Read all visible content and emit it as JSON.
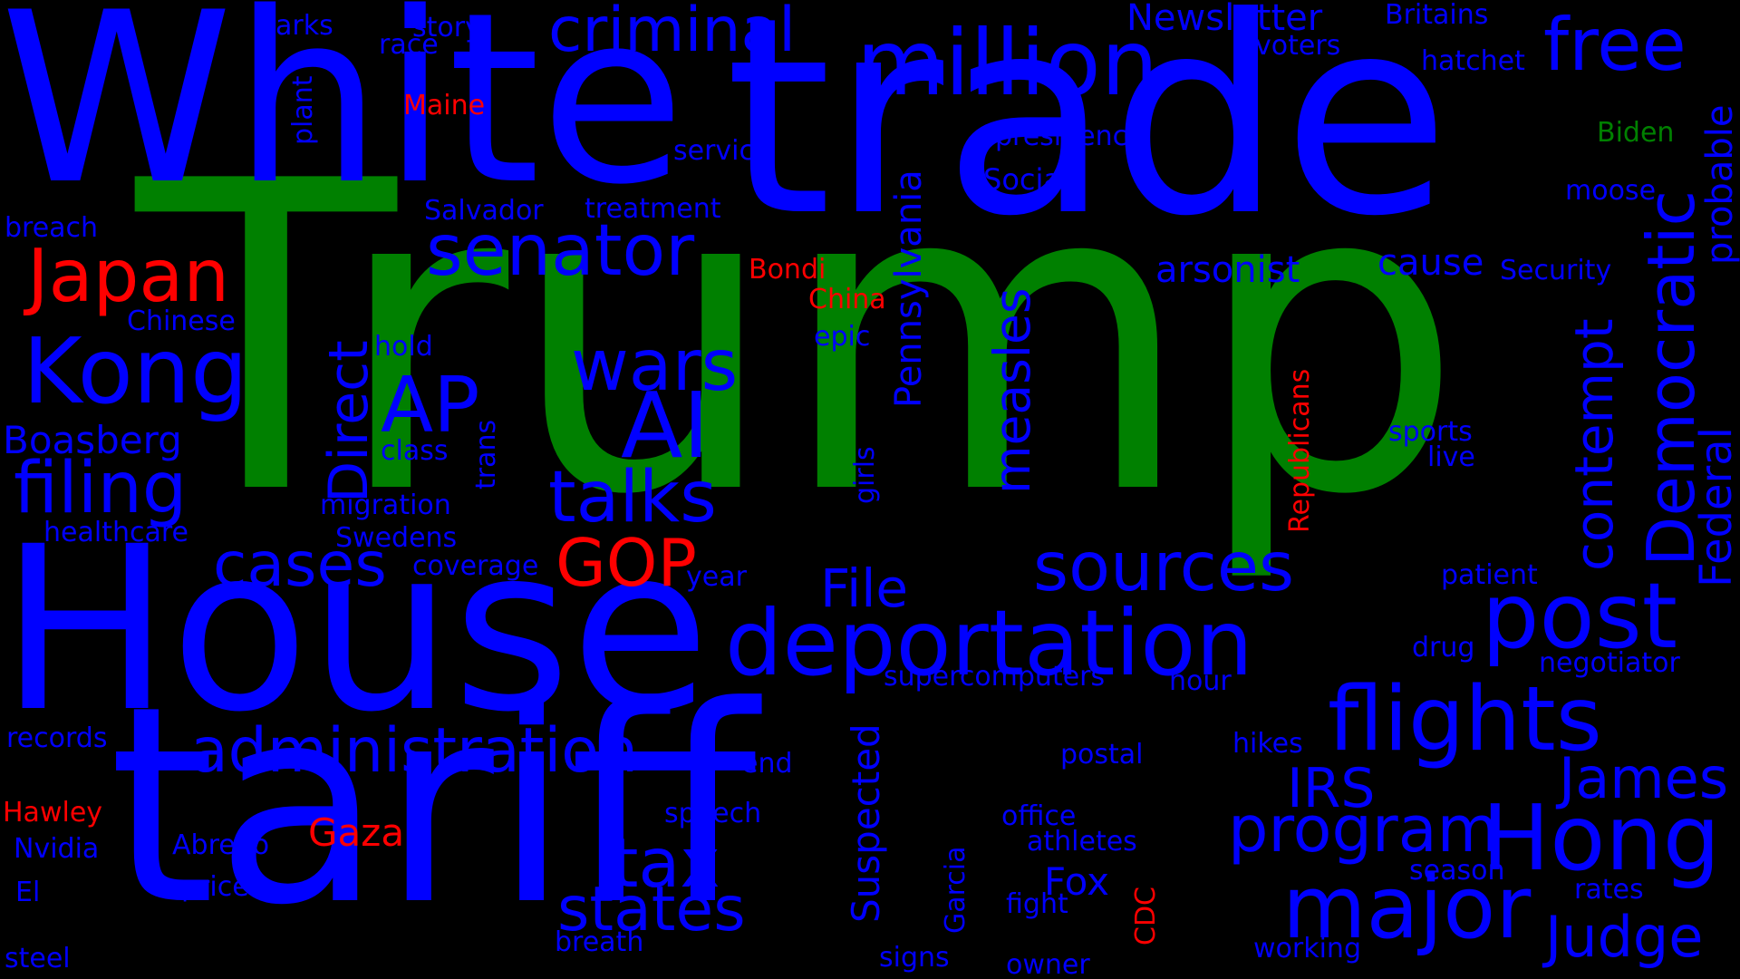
{
  "word_cloud": {
    "colors": {
      "background": "#000000",
      "blue": "#0000ff",
      "green": "#008000",
      "red": "#ff0000"
    },
    "words": {
      "trump": "Trump",
      "white": "White",
      "trade": "trade",
      "house": "House",
      "tariff": "tariff",
      "million": "million",
      "criminal": "criminal",
      "newsletter": "Newsletter",
      "britains": "Britains",
      "free": "free",
      "voters": "voters",
      "hatchet": "hatchet",
      "parks": "parks",
      "story": "story",
      "race": "race",
      "maine": "Maine",
      "plant": "plant",
      "service": "service",
      "presidency": "presidency",
      "biden": "Biden",
      "social": "Social",
      "pennsylvania": "Pennsylvania",
      "democratic": "Democratic",
      "probable": "probable",
      "moose": "moose",
      "salvador": "Salvador",
      "treatment": "treatment",
      "breach": "breach",
      "japan": "Japan",
      "senator": "senator",
      "bondi": "Bondi",
      "arsonist": "arsonist",
      "cause": "cause",
      "security": "Security",
      "china": "China",
      "chinese": "Chinese",
      "epic": "epic",
      "measles": "measles",
      "contempt": "contempt",
      "federal": "Federal",
      "kong": "Kong",
      "direct": "Direct",
      "hold": "hold",
      "wars": "wars",
      "ap": "AP",
      "ai": "AI",
      "republicans": "Republicans",
      "boasberg": "Boasberg",
      "class": "class",
      "trans": "trans",
      "sports": "sports",
      "live": "live",
      "filing": "filing",
      "talks": "talks",
      "migration": "migration",
      "girls": "girls",
      "healthcare": "healthcare",
      "swedens": "Swedens",
      "gop": "GOP",
      "cases": "cases",
      "coverage": "coverage",
      "year": "year",
      "sources": "sources",
      "file": "File",
      "patient": "patient",
      "post": "post",
      "deportation": "deportation",
      "drug": "drug",
      "negotiator": "negotiator",
      "supercomputers": "supercomputers",
      "hour": "hour",
      "flights": "flights",
      "records": "records",
      "administration": "administration",
      "end": "end",
      "postal": "postal",
      "hikes": "hikes",
      "irs": "IRS",
      "james": "James",
      "hawley": "Hawley",
      "hong": "Hong",
      "program": "program",
      "suspected": "Suspected",
      "speech": "speech",
      "office": "office",
      "gaza": "Gaza",
      "abrego": "Abrego",
      "nvidia": "Nvidia",
      "athletes": "athletes",
      "tax": "tax",
      "garcia": "Garcia",
      "season": "season",
      "el": "El",
      "prices": "prices",
      "fox": "Fox",
      "major": "major",
      "rates": "rates",
      "states": "states",
      "fight": "fight",
      "cdc": "CDC",
      "judge": "Judge",
      "breath": "breath",
      "working": "working",
      "steel": "steel",
      "signs": "signs",
      "owner": "owner"
    }
  }
}
